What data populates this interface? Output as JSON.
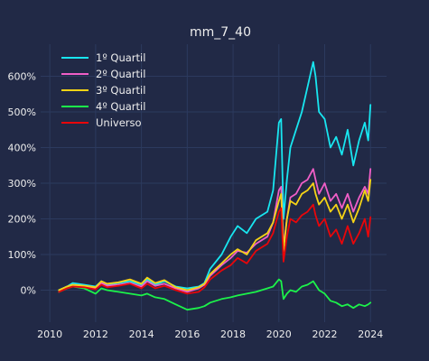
{
  "chart_data": {
    "type": "line",
    "title": "mm_7_40",
    "xlabel": "",
    "ylabel": "",
    "xlim": [
      2009.6,
      2024.7
    ],
    "ylim": [
      -90,
      690
    ],
    "xticks": [
      2010,
      2012,
      2014,
      2016,
      2018,
      2020,
      2022,
      2024
    ],
    "xtick_labels": [
      "2010",
      "2012",
      "2014",
      "2016",
      "2018",
      "2020",
      "2022",
      "2024"
    ],
    "yticks": [
      0,
      100,
      200,
      300,
      400,
      500,
      600
    ],
    "ytick_labels": [
      "0%",
      "100%",
      "200%",
      "300%",
      "400%",
      "500%",
      "600%"
    ],
    "grid": true,
    "legend_position": "top-left",
    "background": "#212946",
    "grid_color": "#2c3a5e",
    "text_color": "#eeeeee",
    "series": [
      {
        "name": "1º Quartil",
        "color": "#18e6f0",
        "x": [
          2010.4,
          2010.75,
          2011.0,
          2011.5,
          2012.0,
          2012.25,
          2012.5,
          2013.0,
          2013.5,
          2014.0,
          2014.25,
          2014.6,
          2015.0,
          2015.5,
          2016.0,
          2016.5,
          2016.75,
          2017.0,
          2017.5,
          2017.9,
          2018.2,
          2018.6,
          2019.0,
          2019.5,
          2019.75,
          2020.0,
          2020.1,
          2020.2,
          2020.35,
          2020.5,
          2020.75,
          2021.0,
          2021.25,
          2021.5,
          2021.6,
          2021.75,
          2022.0,
          2022.25,
          2022.5,
          2022.75,
          2023.0,
          2023.25,
          2023.5,
          2023.75,
          2023.9,
          2024.0
        ],
        "y": [
          0,
          10,
          20,
          15,
          10,
          25,
          15,
          20,
          25,
          15,
          30,
          15,
          25,
          10,
          5,
          10,
          20,
          60,
          100,
          150,
          180,
          160,
          200,
          220,
          280,
          470,
          480,
          200,
          310,
          400,
          450,
          500,
          570,
          640,
          600,
          500,
          480,
          400,
          430,
          380,
          450,
          350,
          420,
          470,
          420,
          520
        ]
      },
      {
        "name": "2º Quartil",
        "color": "#f05ec7",
        "x": [
          2010.4,
          2010.75,
          2011.0,
          2011.5,
          2012.0,
          2012.25,
          2012.5,
          2013.0,
          2013.5,
          2014.0,
          2014.25,
          2014.6,
          2015.0,
          2015.5,
          2016.0,
          2016.5,
          2016.75,
          2017.0,
          2017.5,
          2017.9,
          2018.2,
          2018.6,
          2019.0,
          2019.5,
          2019.75,
          2020.0,
          2020.1,
          2020.2,
          2020.35,
          2020.5,
          2020.75,
          2021.0,
          2021.25,
          2021.5,
          2021.6,
          2021.75,
          2022.0,
          2022.25,
          2022.5,
          2022.75,
          2023.0,
          2023.25,
          2023.5,
          2023.75,
          2023.9,
          2024.0
        ],
        "y": [
          -5,
          8,
          12,
          10,
          5,
          20,
          12,
          15,
          20,
          10,
          25,
          12,
          18,
          5,
          -5,
          5,
          15,
          40,
          70,
          90,
          110,
          105,
          130,
          150,
          190,
          280,
          290,
          120,
          200,
          260,
          270,
          300,
          310,
          340,
          310,
          270,
          300,
          250,
          270,
          230,
          270,
          220,
          260,
          290,
          270,
          340
        ]
      },
      {
        "name": "3º Quartil",
        "color": "#f5d316",
        "x": [
          2010.4,
          2010.75,
          2011.0,
          2011.5,
          2012.0,
          2012.25,
          2012.5,
          2013.0,
          2013.5,
          2014.0,
          2014.25,
          2014.6,
          2015.0,
          2015.5,
          2016.0,
          2016.5,
          2016.75,
          2017.0,
          2017.5,
          2017.9,
          2018.2,
          2018.6,
          2019.0,
          2019.5,
          2019.75,
          2020.0,
          2020.1,
          2020.2,
          2020.35,
          2020.5,
          2020.75,
          2021.0,
          2021.25,
          2021.5,
          2021.6,
          2021.75,
          2022.0,
          2022.25,
          2022.5,
          2022.75,
          2023.0,
          2023.25,
          2023.5,
          2023.75,
          2023.9,
          2024.0
        ],
        "y": [
          0,
          10,
          15,
          12,
          8,
          25,
          18,
          22,
          30,
          18,
          35,
          20,
          28,
          8,
          0,
          8,
          18,
          45,
          75,
          100,
          115,
          100,
          140,
          160,
          190,
          250,
          270,
          110,
          200,
          250,
          240,
          270,
          280,
          300,
          270,
          240,
          260,
          220,
          240,
          200,
          240,
          190,
          230,
          280,
          250,
          310
        ]
      },
      {
        "name": "4º Quartil",
        "color": "#1cf24a",
        "x": [
          2010.4,
          2010.75,
          2011.0,
          2011.5,
          2012.0,
          2012.25,
          2012.5,
          2013.0,
          2013.5,
          2014.0,
          2014.25,
          2014.6,
          2015.0,
          2015.5,
          2016.0,
          2016.5,
          2016.75,
          2017.0,
          2017.5,
          2017.9,
          2018.2,
          2018.6,
          2019.0,
          2019.5,
          2019.75,
          2020.0,
          2020.1,
          2020.2,
          2020.35,
          2020.5,
          2020.75,
          2021.0,
          2021.25,
          2021.5,
          2021.6,
          2021.75,
          2022.0,
          2022.25,
          2022.5,
          2022.75,
          2023.0,
          2023.25,
          2023.5,
          2023.75,
          2023.9,
          2024.0
        ],
        "y": [
          -5,
          5,
          10,
          5,
          -10,
          5,
          0,
          -5,
          -10,
          -15,
          -10,
          -20,
          -25,
          -40,
          -55,
          -50,
          -45,
          -35,
          -25,
          -20,
          -15,
          -10,
          -5,
          5,
          10,
          30,
          25,
          -25,
          -10,
          0,
          -5,
          10,
          15,
          25,
          15,
          0,
          -10,
          -30,
          -35,
          -45,
          -40,
          -50,
          -40,
          -45,
          -40,
          -35
        ]
      },
      {
        "name": "Universo",
        "color": "#e8060a",
        "x": [
          2010.4,
          2010.75,
          2011.0,
          2011.5,
          2012.0,
          2012.25,
          2012.5,
          2013.0,
          2013.5,
          2014.0,
          2014.25,
          2014.6,
          2015.0,
          2015.5,
          2016.0,
          2016.5,
          2016.75,
          2017.0,
          2017.5,
          2017.9,
          2018.2,
          2018.6,
          2019.0,
          2019.5,
          2019.75,
          2020.0,
          2020.1,
          2020.2,
          2020.35,
          2020.5,
          2020.75,
          2021.0,
          2021.25,
          2021.5,
          2021.6,
          2021.75,
          2022.0,
          2022.25,
          2022.5,
          2022.75,
          2023.0,
          2023.25,
          2023.5,
          2023.75,
          2023.9,
          2024.0
        ],
        "y": [
          -5,
          5,
          10,
          8,
          2,
          15,
          8,
          12,
          18,
          5,
          18,
          5,
          12,
          0,
          -10,
          -5,
          8,
          30,
          55,
          70,
          90,
          75,
          110,
          130,
          160,
          220,
          230,
          80,
          150,
          200,
          190,
          210,
          220,
          240,
          210,
          180,
          200,
          150,
          170,
          130,
          180,
          130,
          160,
          200,
          150,
          205
        ]
      }
    ]
  }
}
